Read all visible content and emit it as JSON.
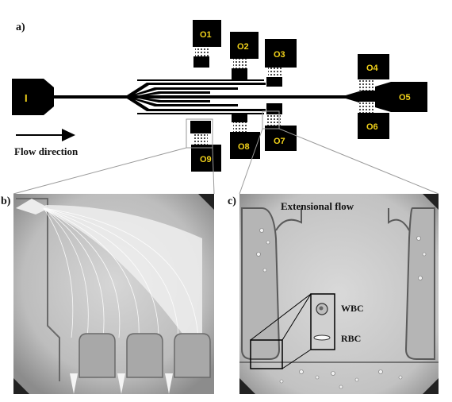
{
  "panels": {
    "a": "a)",
    "b": "b)",
    "c": "c)"
  },
  "inlet": "I",
  "outlets": {
    "o1": "O1",
    "o2": "O2",
    "o3": "O3",
    "o4": "O4",
    "o5": "O5",
    "o6": "O6",
    "o7": "O7",
    "o8": "O8",
    "o9": "O9"
  },
  "flow_direction": "Flow direction",
  "extensional_flow": "Extensional flow",
  "cells": {
    "wbc": "WBC",
    "rbc": "RBC"
  },
  "colors": {
    "block": "#000000",
    "label": "#f2d21a",
    "micrograph": "#c9c9c9",
    "guide": "#9a9a9a"
  }
}
